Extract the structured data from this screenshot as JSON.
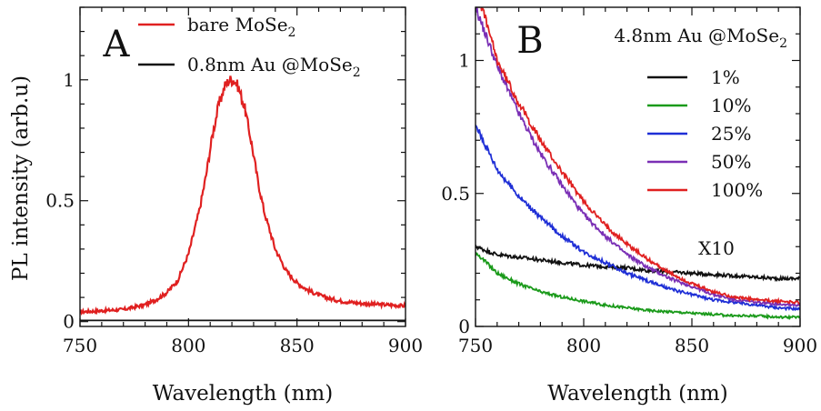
{
  "figure": {
    "ylabel": "PL intensity (arb.u)"
  },
  "chart_data": [
    {
      "type": "line",
      "panel_label": "A",
      "xlabel": "Wavelength (nm)",
      "ylabel": "PL intensity (arb.u)",
      "xlim": [
        750,
        900
      ],
      "ylim": [
        -0.02,
        1.3
      ],
      "x_ticks": [
        750,
        800,
        850,
        900
      ],
      "y_ticks": [
        0,
        0.5,
        1
      ],
      "y_tick_labels": [
        "0",
        "0.5",
        "1"
      ],
      "grid": false,
      "legend": {
        "placement": "top-right"
      },
      "series": [
        {
          "name": "bare MoSe2",
          "color": "#e02020",
          "x": [
            750,
            760,
            770,
            780,
            785,
            790,
            795,
            800,
            805,
            808,
            811,
            814,
            817,
            819,
            821,
            823,
            826,
            829,
            832,
            835,
            840,
            845,
            850,
            855,
            860,
            865,
            870,
            880,
            890,
            900
          ],
          "y": [
            0.04,
            0.045,
            0.05,
            0.07,
            0.09,
            0.12,
            0.17,
            0.28,
            0.46,
            0.6,
            0.77,
            0.9,
            0.98,
            1.0,
            1.0,
            0.97,
            0.88,
            0.74,
            0.58,
            0.45,
            0.3,
            0.21,
            0.16,
            0.13,
            0.11,
            0.095,
            0.085,
            0.075,
            0.07,
            0.065
          ]
        },
        {
          "name": "0.8nm Au @MoSe2",
          "color": "#111111",
          "x": [
            750,
            775,
            800,
            825,
            850,
            875,
            900
          ],
          "y": [
            0.005,
            0.005,
            0.005,
            0.005,
            0.005,
            0.005,
            0.005
          ]
        }
      ]
    },
    {
      "type": "line",
      "panel_label": "B",
      "title": "4.8nm Au @MoSe2",
      "xlabel": "Wavelength (nm)",
      "xlim": [
        750,
        900
      ],
      "ylim": [
        0,
        1.2
      ],
      "x_ticks": [
        750,
        800,
        850,
        900
      ],
      "y_ticks": [
        0,
        0.5,
        1
      ],
      "y_tick_labels": [
        "0",
        "0.5",
        "1"
      ],
      "grid": false,
      "legend": {
        "placement": "right"
      },
      "annotations": [
        {
          "text": "X10",
          "x": 853,
          "y": 0.27
        }
      ],
      "series": [
        {
          "name": "1%",
          "color": "#111111",
          "x": [
            750,
            760,
            770,
            780,
            790,
            800,
            810,
            820,
            830,
            840,
            850,
            860,
            870,
            880,
            890,
            900
          ],
          "y": [
            0.3,
            0.27,
            0.26,
            0.25,
            0.24,
            0.23,
            0.225,
            0.22,
            0.21,
            0.205,
            0.2,
            0.195,
            0.19,
            0.185,
            0.18,
            0.18
          ]
        },
        {
          "name": "10%",
          "color": "#1a9a1a",
          "x": [
            750,
            760,
            770,
            780,
            790,
            800,
            810,
            820,
            830,
            840,
            850,
            860,
            870,
            880,
            890,
            900
          ],
          "y": [
            0.28,
            0.2,
            0.16,
            0.13,
            0.11,
            0.095,
            0.08,
            0.07,
            0.06,
            0.055,
            0.05,
            0.045,
            0.04,
            0.04,
            0.035,
            0.035
          ]
        },
        {
          "name": "25%",
          "color": "#1f2fd6",
          "x": [
            750,
            760,
            770,
            780,
            790,
            800,
            810,
            820,
            830,
            840,
            850,
            860,
            870,
            880,
            890,
            900
          ],
          "y": [
            0.76,
            0.59,
            0.49,
            0.41,
            0.34,
            0.28,
            0.24,
            0.2,
            0.17,
            0.14,
            0.12,
            0.1,
            0.09,
            0.08,
            0.07,
            0.065
          ]
        },
        {
          "name": "50%",
          "color": "#7a2fb5",
          "x": [
            750,
            760,
            770,
            780,
            790,
            800,
            810,
            820,
            830,
            840,
            850,
            860,
            870,
            880,
            890,
            900
          ],
          "y": [
            1.2,
            0.98,
            0.8,
            0.65,
            0.53,
            0.42,
            0.34,
            0.27,
            0.22,
            0.18,
            0.15,
            0.12,
            0.1,
            0.09,
            0.085,
            0.08
          ]
        },
        {
          "name": "100%",
          "color": "#e02020",
          "x": [
            750,
            753,
            760,
            770,
            780,
            790,
            800,
            810,
            820,
            830,
            840,
            850,
            860,
            870,
            880,
            890,
            900
          ],
          "y": [
            1.25,
            1.2,
            1.0,
            0.84,
            0.7,
            0.58,
            0.47,
            0.38,
            0.31,
            0.25,
            0.2,
            0.16,
            0.13,
            0.11,
            0.1,
            0.095,
            0.09
          ]
        }
      ]
    }
  ]
}
